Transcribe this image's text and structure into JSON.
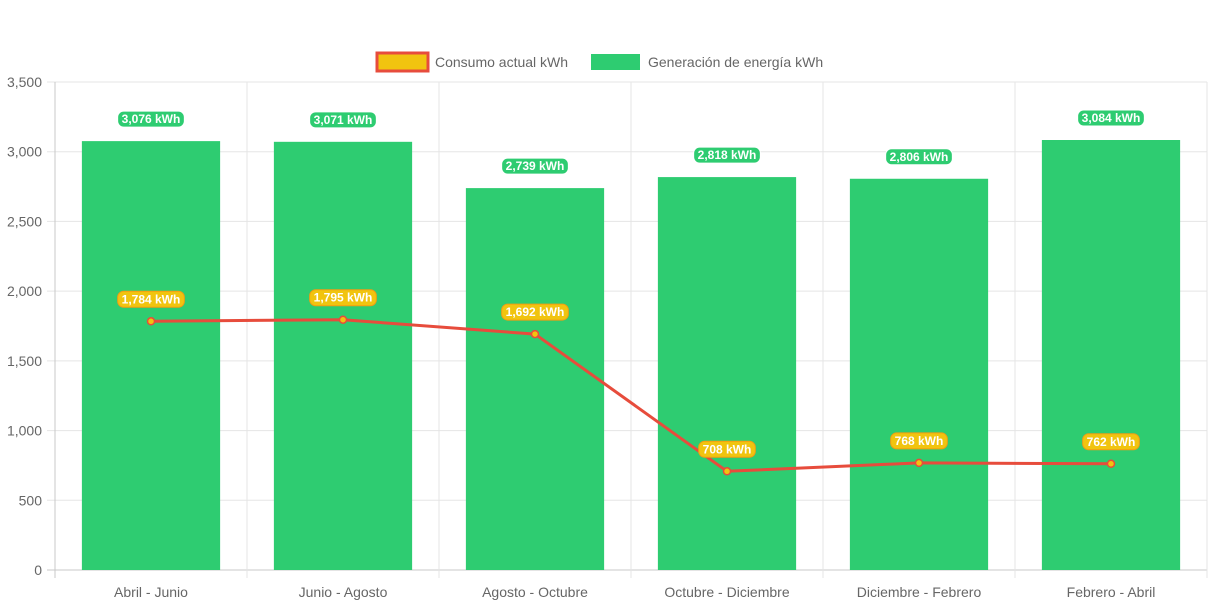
{
  "chart_data": {
    "type": "bar",
    "categories": [
      "Abril - Junio",
      "Junio - Agosto",
      "Agosto - Octubre",
      "Octubre - Diciembre",
      "Diciembre - Febrero",
      "Febrero - Abril"
    ],
    "series": [
      {
        "name": "Consumo actual kWh",
        "type": "line",
        "values": [
          1784,
          1795,
          1692,
          708,
          768,
          762
        ],
        "labels": [
          "1,784 kWh",
          "1,795 kWh",
          "1,692 kWh",
          "708 kWh",
          "768 kWh",
          "762 kWh"
        ],
        "line_color": "#e74c3c",
        "fill_color": "#f1c40f"
      },
      {
        "name": "Generación de energía kWh",
        "type": "bar",
        "values": [
          3076,
          3071,
          2739,
          2818,
          2806,
          3084
        ],
        "labels": [
          "3,076 kWh",
          "3,071 kWh",
          "2,739 kWh",
          "2,818 kWh",
          "2,806 kWh",
          "3,084 kWh"
        ],
        "color": "#2ecc71"
      }
    ],
    "yticks": [
      "0",
      "500",
      "1,000",
      "1,500",
      "2,000",
      "2,500",
      "3,000",
      "3,500"
    ],
    "ylim": [
      0,
      3500
    ],
    "title": "",
    "xlabel": "",
    "ylabel": "",
    "grid": true,
    "legend_position": "top"
  }
}
